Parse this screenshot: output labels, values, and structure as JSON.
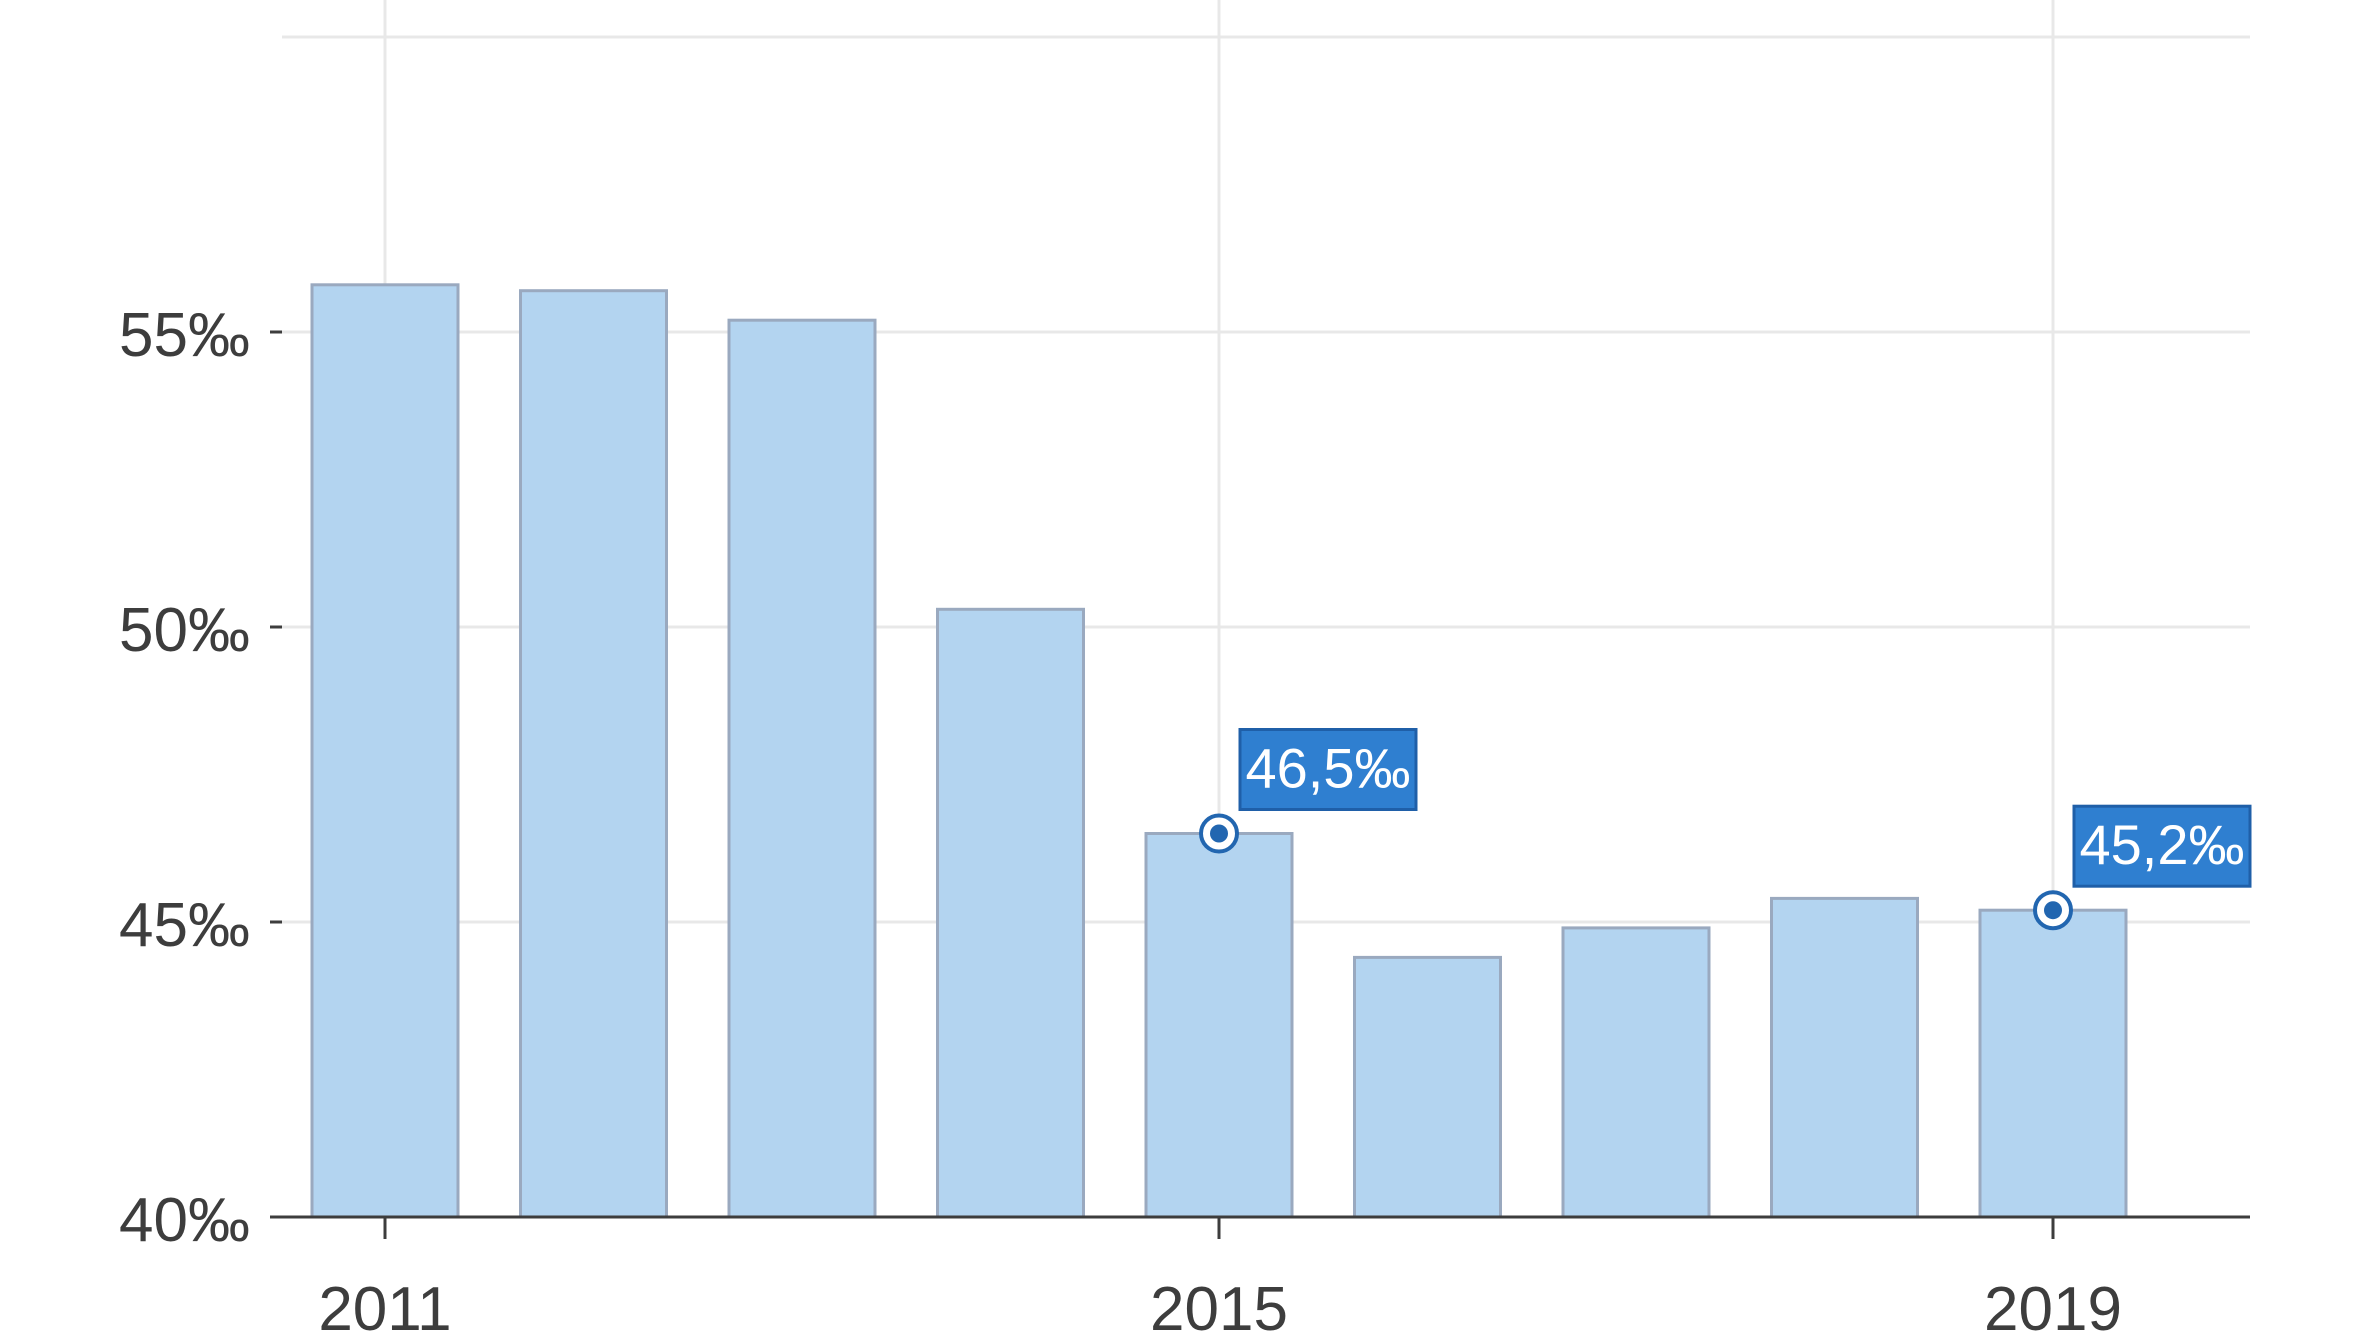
{
  "colors": {
    "bar_fill": "#b3d4f0",
    "bar_stroke": "#9aa9bf",
    "grid": "#e8e8e8",
    "axis": "#3d3d3d",
    "callout_fill": "#2f7fd0",
    "callout_stroke": "#1f5fa8",
    "marker": "#2266b0"
  },
  "chart_data": {
    "type": "bar",
    "x": [
      2011,
      2012,
      2013,
      2014,
      2015,
      2016,
      2017,
      2018,
      2019
    ],
    "values": [
      55.8,
      55.7,
      55.2,
      50.3,
      46.5,
      44.4,
      44.9,
      45.4,
      45.2
    ],
    "ylim": [
      40,
      60
    ],
    "y_ticks": [
      40,
      45,
      50,
      55
    ],
    "y_tick_labels": [
      "40‰",
      "45‰",
      "50‰",
      "55‰"
    ],
    "x_ticks": [
      2011,
      2015,
      2019
    ],
    "x_tick_labels": [
      "2011",
      "2015",
      "2019"
    ],
    "grid": true,
    "title": "",
    "xlabel": "",
    "ylabel": "",
    "annotations": [
      {
        "x": 2015,
        "value": 46.5,
        "text": "46,5‰"
      },
      {
        "x": 2019,
        "value": 45.2,
        "text": "45,2‰"
      }
    ]
  }
}
